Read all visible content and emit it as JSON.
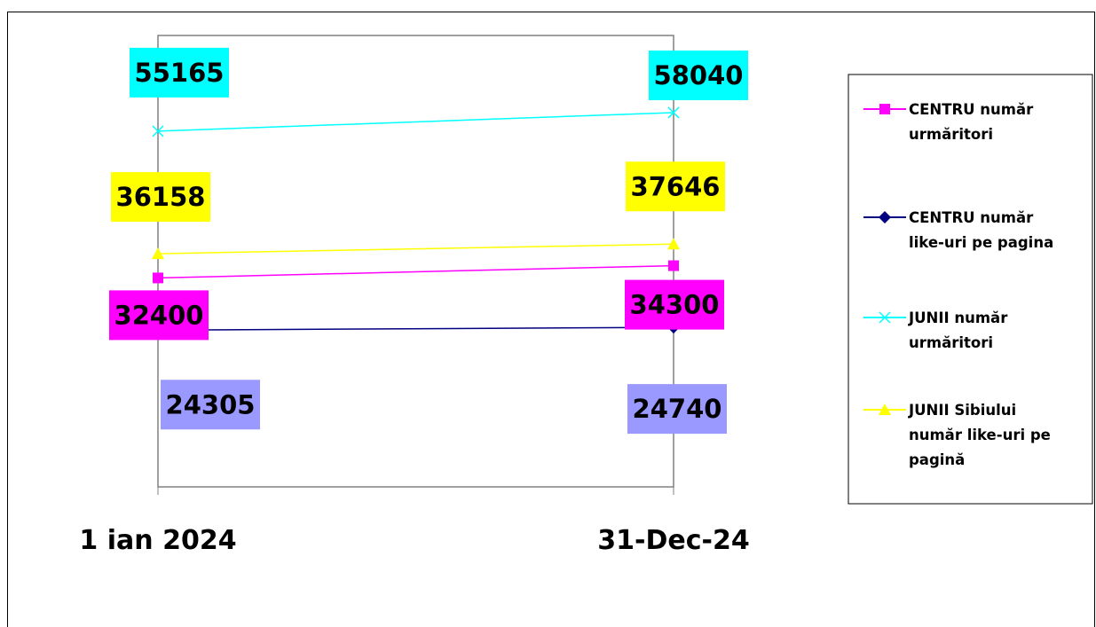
{
  "chart_data": {
    "type": "line",
    "categories": [
      "1 ian 2024",
      "31-Dec-24"
    ],
    "ylim": [
      0,
      70000
    ],
    "grid": false,
    "legend_position": "right",
    "series": [
      {
        "key": "s1",
        "name": "CENTRU număr urmăritori",
        "legend_lines": [
          "CENTRU număr",
          "urmăritori"
        ],
        "values": [
          32400,
          34300
        ],
        "color": "#ff00ff",
        "marker": "square",
        "label_bg": "#ff00ff",
        "label_pos": "below"
      },
      {
        "key": "s2",
        "name": "CENTRU număr like-uri pe pagina",
        "legend_lines": [
          "CENTRU număr",
          "like-uri pe pagina"
        ],
        "values": [
          24305,
          24740
        ],
        "color": "#000080",
        "marker": "diamond",
        "label_bg": "#9999ff",
        "label_pos": "below"
      },
      {
        "key": "s3",
        "name": "JUNII număr urmăritori",
        "legend_lines": [
          "JUNII număr",
          "urmăritori"
        ],
        "values": [
          55165,
          58040
        ],
        "color": "#00ffff",
        "marker": "x",
        "label_bg": "#00ffff",
        "label_pos": "above"
      },
      {
        "key": "s4",
        "name": "JUNII Sibiului număr like-uri pe pagină",
        "legend_lines": [
          "JUNII Sibiului",
          "număr like-uri pe",
          "pagină"
        ],
        "values": [
          36158,
          37646
        ],
        "color": "#ffff00",
        "marker": "triangle",
        "label_bg": "#ffff00",
        "label_pos": "above"
      }
    ]
  }
}
